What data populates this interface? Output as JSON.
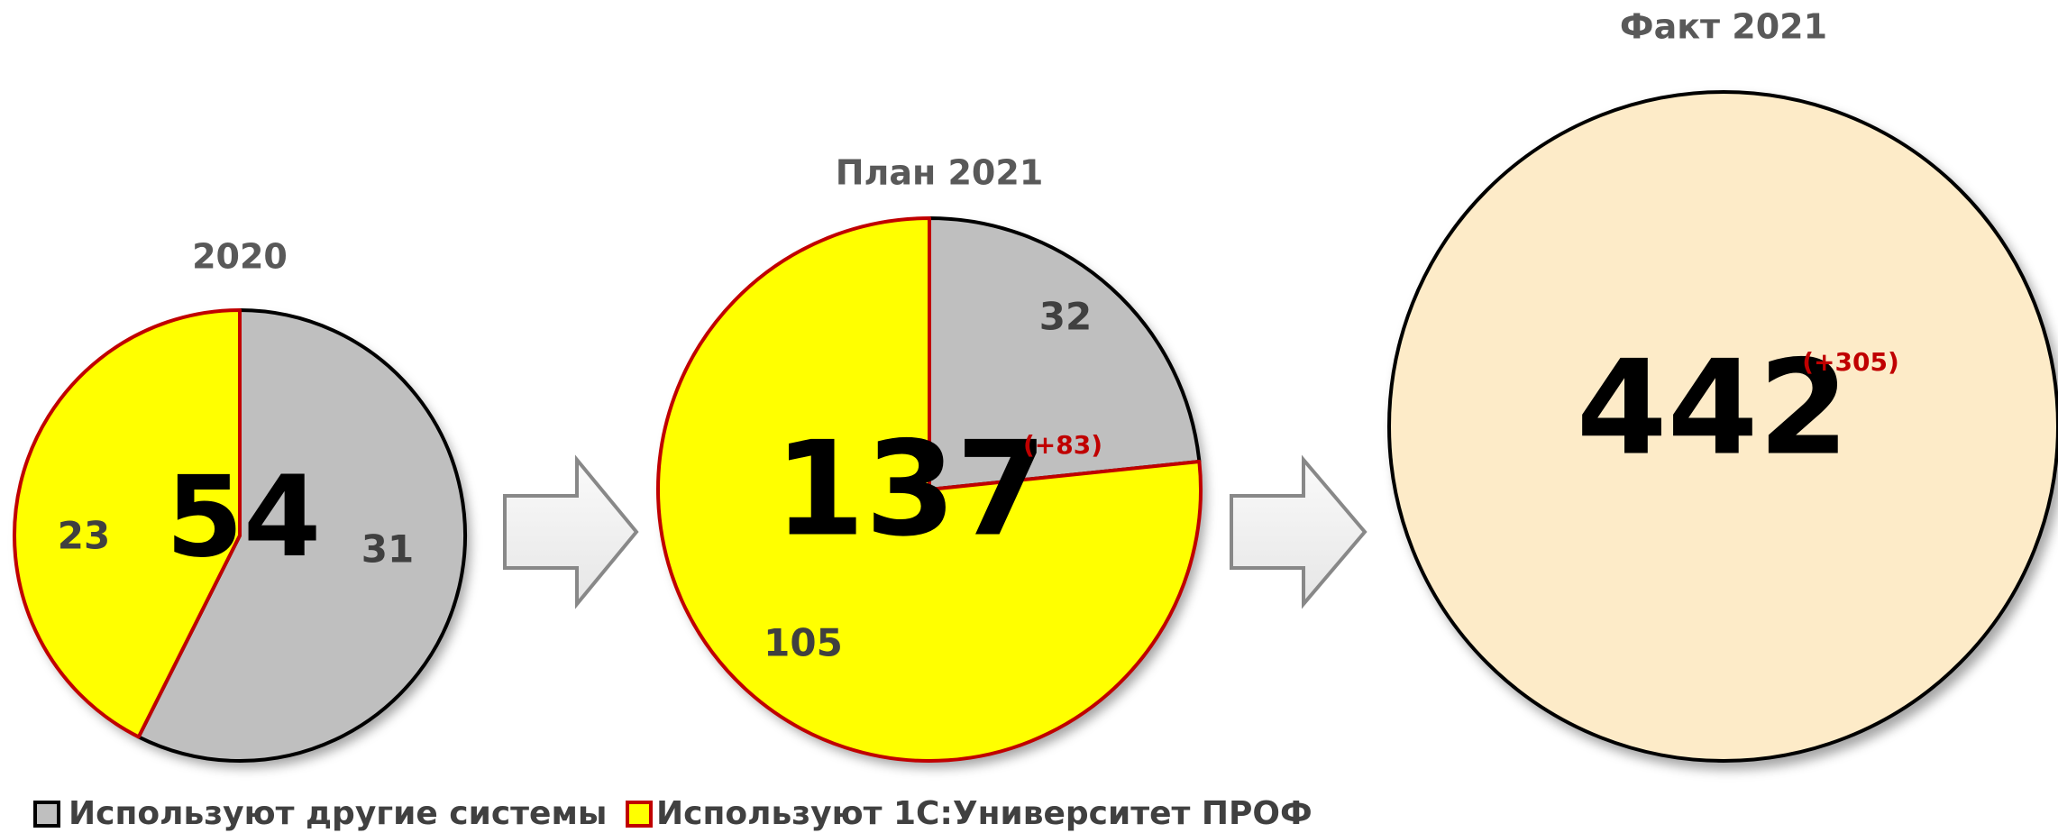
{
  "chart_data": [
    {
      "type": "pie",
      "title": "2020",
      "total": 54,
      "values": [
        31,
        23
      ]
    },
    {
      "type": "pie",
      "title": "План 2021",
      "total": 137,
      "annotation": "(+83)",
      "values": [
        32,
        105
      ]
    },
    {
      "type": "circle",
      "title": "Факт 2021",
      "total": 442,
      "annotation": "(+305)",
      "color": "#fdebc8"
    }
  ],
  "legend": [
    {
      "name": "Используют другие системы",
      "color": "#bfbfbf",
      "edge": "#000000"
    },
    {
      "name": "Используют 1С:Университет ПРОФ",
      "color": "#ffff00",
      "edge": "#c00000"
    }
  ]
}
